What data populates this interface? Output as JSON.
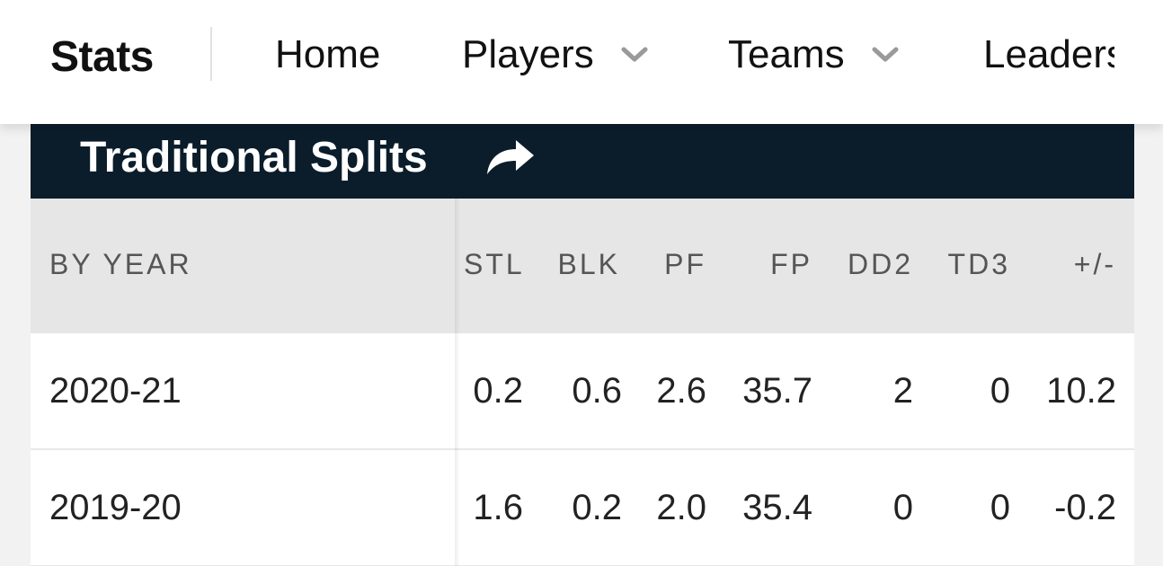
{
  "nav": {
    "brand": "Stats",
    "items": [
      {
        "label": "Home"
      },
      {
        "label": "Players",
        "has_dropdown": true
      },
      {
        "label": "Teams",
        "has_dropdown": true
      },
      {
        "label": "Leaders"
      }
    ]
  },
  "section": {
    "title": "Traditional Splits",
    "icon": "share-icon",
    "header_bg": "#0b1d2b"
  },
  "table": {
    "columns": [
      "BY YEAR",
      "STL",
      "BLK",
      "PF",
      "FP",
      "DD2",
      "TD3",
      "+/-"
    ],
    "rows": [
      [
        "2020-21",
        "0.2",
        "0.6",
        "2.6",
        "35.7",
        "2",
        "0",
        "10.2"
      ],
      [
        "2019-20",
        "1.6",
        "0.2",
        "2.0",
        "35.4",
        "0",
        "0",
        "-0.2"
      ]
    ]
  }
}
